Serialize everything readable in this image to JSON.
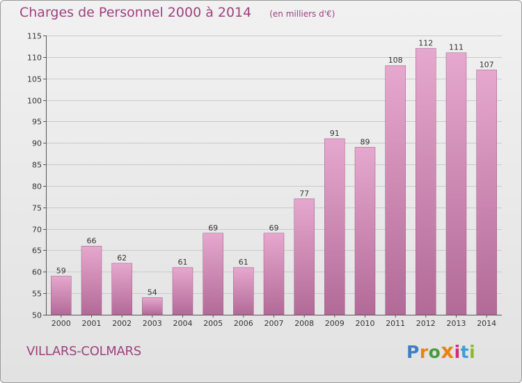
{
  "header": {
    "title": "Charges de Personnel 2000 à 2014",
    "subtitle": "(en milliers d'€)"
  },
  "footer": {
    "commune": "VILLARS-COLMARS",
    "logo_text": "Proxiti"
  },
  "colors": {
    "title": "#a0407f",
    "bar_top": "#e6a8ce",
    "bar_bottom": "#b26a97",
    "bar_stroke": "#9a5a84",
    "logo_letters": [
      "#3f7fc1",
      "#e8821a",
      "#4a9b3a",
      "#e8821a",
      "#d9287a",
      "#3f9fd6",
      "#8ab82e"
    ]
  },
  "chart_data": {
    "type": "bar",
    "title": "Charges de Personnel 2000 à 2014",
    "subtitle": "(en milliers d'€)",
    "xlabel": "",
    "ylabel": "",
    "categories": [
      "2000",
      "2001",
      "2002",
      "2003",
      "2004",
      "2005",
      "2006",
      "2007",
      "2008",
      "2009",
      "2010",
      "2011",
      "2012",
      "2013",
      "2014"
    ],
    "values": [
      59,
      66,
      62,
      54,
      61,
      69,
      61,
      69,
      77,
      91,
      89,
      108,
      112,
      111,
      107
    ],
    "ylim": [
      50,
      115
    ],
    "yticks": [
      50,
      55,
      60,
      65,
      70,
      75,
      80,
      85,
      90,
      95,
      100,
      105,
      110,
      115
    ],
    "grid": true,
    "legend": "none"
  }
}
